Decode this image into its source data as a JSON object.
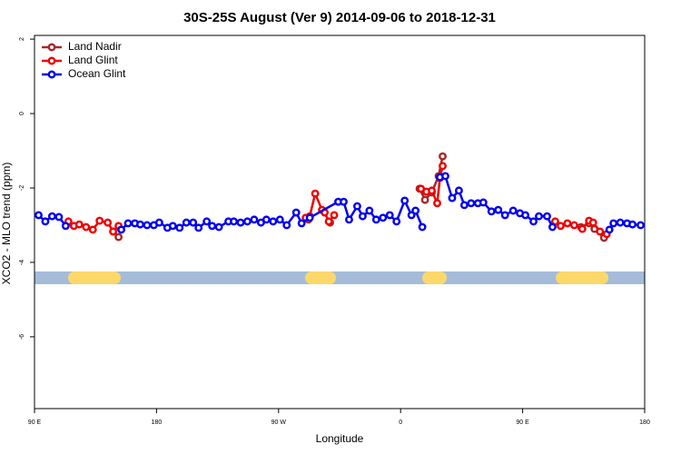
{
  "chart_data": {
    "type": "line",
    "title": "30S-25S August (Ver 9)   2014-09-06 to 2018-12-31",
    "x_label": "Longitude",
    "y_label": "XCO2 - MLO trend (ppm)",
    "xlim": [
      90,
      540
    ],
    "ylim": [
      -7.93,
      2.1
    ],
    "xticks": [
      {
        "value": 90,
        "label": "90 E"
      },
      180,
      {
        "value": 270,
        "label": "90 W"
      },
      {
        "value": 360,
        "label": "0"
      },
      {
        "value": 450,
        "label": "90 E"
      },
      {
        "value": 540,
        "label": "180"
      }
    ],
    "yticks": [
      2,
      0,
      -2,
      -4,
      -6
    ],
    "legend": "top-left",
    "series": [
      {
        "name": "Land Nadir",
        "color": "#a52a2a",
        "x": [
          148,
          152,
          null,
          374,
          378,
          383,
          388,
          391,
          null,
          292,
          null,
          308,
          null,
          493,
          499,
          503,
          510
        ],
        "values": [
          -3.17,
          -3.32,
          null,
          -2.02,
          -2.32,
          -2.12,
          -1.68,
          -1.15,
          null,
          -2.85,
          null,
          -2.93,
          null,
          -3.05,
          -2.95,
          -3.1,
          -3.34
        ]
      },
      {
        "name": "Land Glint",
        "color": "#ee0000",
        "x": [
          115,
          119,
          123,
          128,
          133,
          138,
          144,
          148,
          152,
          null,
          290,
          293,
          297,
          302,
          304,
          307,
          311,
          null,
          375,
          379,
          383,
          387,
          389,
          391,
          null,
          474,
          478,
          483,
          488,
          494,
          499,
          502,
          507,
          512
        ],
        "values": [
          -2.9,
          -3.02,
          -2.98,
          -3.05,
          -3.12,
          -2.88,
          -2.93,
          -3.17,
          -3.02,
          null,
          -2.8,
          -2.76,
          -2.15,
          -2.59,
          -2.66,
          -2.9,
          -2.73,
          null,
          -2.02,
          -2.1,
          -2.07,
          -2.41,
          -1.73,
          -1.41,
          null,
          -2.9,
          -3.02,
          -2.95,
          -3.0,
          -3.1,
          -2.88,
          -2.93,
          -3.17,
          -3.24
        ]
      },
      {
        "name": "Ocean Glint",
        "color": "#0000ee",
        "x": [
          93,
          98,
          103,
          108,
          113,
          null,
          154,
          159,
          164,
          168,
          173,
          178,
          182,
          188,
          192,
          197,
          202,
          207,
          211,
          217,
          221,
          226,
          233,
          237,
          242,
          247,
          252,
          257,
          261,
          266,
          271,
          276,
          283,
          287,
          293,
          314,
          318,
          322,
          328,
          332,
          337,
          342,
          347,
          352,
          357,
          363,
          368,
          371,
          376,
          null,
          389,
          393,
          398,
          403,
          407,
          412,
          417,
          421,
          427,
          432,
          437,
          443,
          448,
          452,
          458,
          462,
          468,
          472,
          null,
          514,
          517,
          522,
          527,
          531,
          537
        ],
        "values": [
          -2.73,
          -2.9,
          -2.76,
          -2.78,
          -3.02,
          null,
          -3.12,
          -2.95,
          -2.95,
          -2.98,
          -3.0,
          -3.0,
          -2.93,
          -3.07,
          -3.02,
          -3.07,
          -2.93,
          -2.93,
          -3.07,
          -2.9,
          -3.02,
          -3.05,
          -2.9,
          -2.9,
          -2.93,
          -2.9,
          -2.85,
          -2.93,
          -2.85,
          -2.9,
          -2.85,
          -3.0,
          -2.66,
          -2.95,
          -2.8,
          -2.37,
          -2.37,
          -2.85,
          -2.49,
          -2.76,
          -2.61,
          -2.85,
          -2.8,
          -2.73,
          -2.9,
          -2.34,
          -2.73,
          -2.61,
          -3.05,
          null,
          -1.71,
          -1.68,
          -2.27,
          -2.07,
          -2.46,
          -2.41,
          -2.41,
          -2.39,
          -2.63,
          -2.59,
          -2.73,
          -2.61,
          -2.68,
          -2.73,
          -2.9,
          -2.76,
          -2.76,
          -3.05,
          null,
          -3.12,
          -2.95,
          -2.93,
          -2.95,
          -2.98,
          -3.0
        ]
      }
    ]
  }
}
